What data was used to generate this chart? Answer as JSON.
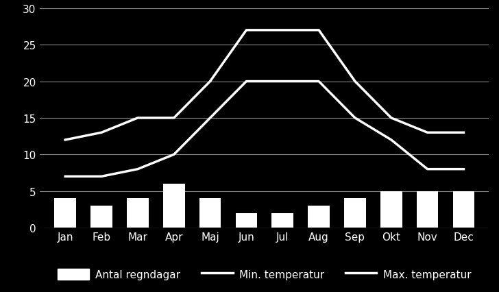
{
  "months": [
    "Jan",
    "Feb",
    "Mar",
    "Apr",
    "Maj",
    "Jun",
    "Jul",
    "Aug",
    "Sep",
    "Okt",
    "Nov",
    "Dec"
  ],
  "rain_days": [
    4,
    3,
    4,
    6,
    4,
    2,
    2,
    3,
    4,
    5,
    5,
    5
  ],
  "min_temp": [
    7,
    7,
    8,
    10,
    15,
    20,
    20,
    20,
    15,
    12,
    8,
    8
  ],
  "max_temp": [
    12,
    13,
    15,
    15,
    20,
    27,
    27,
    27,
    20,
    15,
    13,
    13
  ],
  "background_color": "#000000",
  "text_color": "#ffffff",
  "bar_color": "#ffffff",
  "line_color": "#ffffff",
  "grid_color": "#888888",
  "ylim": [
    0,
    30
  ],
  "yticks": [
    0,
    5,
    10,
    15,
    20,
    25,
    30
  ],
  "legend_bar": "Antal regndagar",
  "legend_min": "Min. temperatur",
  "legend_max": "Max. temperatur",
  "bar_width": 0.6,
  "line_width": 2.5,
  "font_size": 11
}
